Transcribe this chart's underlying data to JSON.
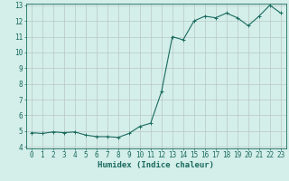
{
  "x": [
    0,
    1,
    2,
    3,
    4,
    5,
    6,
    7,
    8,
    9,
    10,
    11,
    12,
    13,
    14,
    15,
    16,
    17,
    18,
    19,
    20,
    21,
    22,
    23
  ],
  "y": [
    4.9,
    4.85,
    4.95,
    4.9,
    4.95,
    4.75,
    4.65,
    4.65,
    4.6,
    4.85,
    5.3,
    5.5,
    7.5,
    11.0,
    10.8,
    12.0,
    12.3,
    12.2,
    12.5,
    12.2,
    11.7,
    12.3,
    13.0,
    12.5
  ],
  "line_color": "#1a6b5e",
  "marker": "+",
  "marker_size": 3,
  "bg_color": "#d4eeea",
  "grid_color": "#b8c8c4",
  "axis_color": "#1a6b5e",
  "xlabel": "Humidex (Indice chaleur)",
  "ylim": [
    4,
    13
  ],
  "xlim": [
    -0.5,
    23.5
  ],
  "yticks": [
    4,
    5,
    6,
    7,
    8,
    9,
    10,
    11,
    12,
    13
  ],
  "xticks": [
    0,
    1,
    2,
    3,
    4,
    5,
    6,
    7,
    8,
    9,
    10,
    11,
    12,
    13,
    14,
    15,
    16,
    17,
    18,
    19,
    20,
    21,
    22,
    23
  ],
  "xlabel_fontsize": 6.5,
  "tick_fontsize": 5.5,
  "line_width": 0.8
}
